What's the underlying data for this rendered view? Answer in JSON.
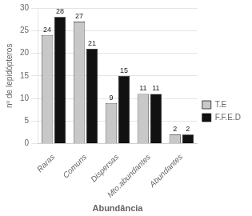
{
  "chart_data": {
    "type": "bar",
    "categories": [
      "Raras",
      "Comuns",
      "Dispersas",
      "Mto.abundantes",
      "Abundantes"
    ],
    "series": [
      {
        "name": "T.E",
        "color": "#c8c8c8",
        "values": [
          24,
          27,
          9,
          11,
          2
        ]
      },
      {
        "name": "F.F.E.D",
        "color": "#111111",
        "values": [
          28,
          21,
          15,
          11,
          2
        ]
      }
    ],
    "xlabel": "Abundância",
    "ylabel": "nº de lepidópteros",
    "ylim": [
      0,
      30
    ],
    "yticks": [
      0,
      5,
      10,
      15,
      20,
      25,
      30
    ],
    "grid": true,
    "legend": "right",
    "data_labels": true
  }
}
